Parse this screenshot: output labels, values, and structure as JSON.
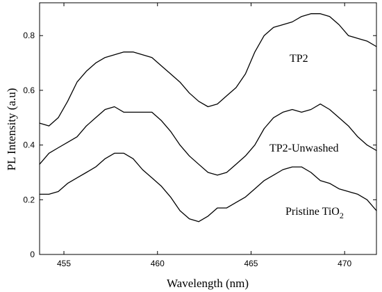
{
  "chart_data": {
    "type": "line",
    "title": "",
    "xlabel": "Wavelength (nm)",
    "ylabel": "PL Intensity (a.u)",
    "xlim": [
      453.7,
      471.7
    ],
    "ylim": [
      0,
      0.92
    ],
    "xticks": [
      455,
      460,
      465,
      470
    ],
    "yticks": [
      0,
      0.2,
      0.4,
      0.6,
      0.8
    ],
    "ytick_labels": [
      "0",
      "0.2",
      "0.4",
      "0.6",
      "0.8"
    ],
    "grid": false,
    "legend": "none (series labelled in-plot)",
    "line_color": "#000000",
    "series": [
      {
        "name": "TP2",
        "label_parts": [
          "TP2"
        ],
        "points": [
          [
            453.7,
            0.48
          ],
          [
            454.2,
            0.47
          ],
          [
            454.7,
            0.5
          ],
          [
            455.2,
            0.56
          ],
          [
            455.7,
            0.63
          ],
          [
            456.2,
            0.67
          ],
          [
            456.7,
            0.7
          ],
          [
            457.2,
            0.72
          ],
          [
            457.7,
            0.73
          ],
          [
            458.2,
            0.74
          ],
          [
            458.7,
            0.74
          ],
          [
            459.2,
            0.73
          ],
          [
            459.7,
            0.72
          ],
          [
            460.2,
            0.69
          ],
          [
            460.7,
            0.66
          ],
          [
            461.2,
            0.63
          ],
          [
            461.7,
            0.59
          ],
          [
            462.2,
            0.56
          ],
          [
            462.7,
            0.54
          ],
          [
            463.2,
            0.55
          ],
          [
            463.7,
            0.58
          ],
          [
            464.2,
            0.61
          ],
          [
            464.7,
            0.66
          ],
          [
            465.2,
            0.74
          ],
          [
            465.7,
            0.8
          ],
          [
            466.2,
            0.83
          ],
          [
            466.7,
            0.84
          ],
          [
            467.2,
            0.85
          ],
          [
            467.7,
            0.87
          ],
          [
            468.2,
            0.88
          ],
          [
            468.7,
            0.88
          ],
          [
            469.2,
            0.87
          ],
          [
            469.7,
            0.84
          ],
          [
            470.2,
            0.8
          ],
          [
            470.7,
            0.79
          ],
          [
            471.2,
            0.78
          ],
          [
            471.7,
            0.76
          ]
        ]
      },
      {
        "name": "TP2-Unwashed",
        "label_parts": [
          "TP2-Unwashed"
        ],
        "points": [
          [
            453.7,
            0.33
          ],
          [
            454.2,
            0.37
          ],
          [
            454.7,
            0.39
          ],
          [
            455.2,
            0.41
          ],
          [
            455.7,
            0.43
          ],
          [
            456.2,
            0.47
          ],
          [
            456.7,
            0.5
          ],
          [
            457.2,
            0.53
          ],
          [
            457.7,
            0.54
          ],
          [
            458.2,
            0.52
          ],
          [
            458.7,
            0.52
          ],
          [
            459.2,
            0.52
          ],
          [
            459.7,
            0.52
          ],
          [
            460.2,
            0.49
          ],
          [
            460.7,
            0.45
          ],
          [
            461.2,
            0.4
          ],
          [
            461.7,
            0.36
          ],
          [
            462.2,
            0.33
          ],
          [
            462.7,
            0.3
          ],
          [
            463.2,
            0.29
          ],
          [
            463.7,
            0.3
          ],
          [
            464.2,
            0.33
          ],
          [
            464.7,
            0.36
          ],
          [
            465.2,
            0.4
          ],
          [
            465.7,
            0.46
          ],
          [
            466.2,
            0.5
          ],
          [
            466.7,
            0.52
          ],
          [
            467.2,
            0.53
          ],
          [
            467.7,
            0.52
          ],
          [
            468.2,
            0.53
          ],
          [
            468.7,
            0.55
          ],
          [
            469.2,
            0.53
          ],
          [
            469.7,
            0.5
          ],
          [
            470.2,
            0.47
          ],
          [
            470.7,
            0.43
          ],
          [
            471.2,
            0.4
          ],
          [
            471.7,
            0.38
          ]
        ]
      },
      {
        "name": "Pristine TiO2",
        "label_parts": [
          "Pristine TiO",
          "2"
        ],
        "points": [
          [
            453.7,
            0.22
          ],
          [
            454.2,
            0.22
          ],
          [
            454.7,
            0.23
          ],
          [
            455.2,
            0.26
          ],
          [
            455.7,
            0.28
          ],
          [
            456.2,
            0.3
          ],
          [
            456.7,
            0.32
          ],
          [
            457.2,
            0.35
          ],
          [
            457.7,
            0.37
          ],
          [
            458.2,
            0.37
          ],
          [
            458.7,
            0.35
          ],
          [
            459.2,
            0.31
          ],
          [
            459.7,
            0.28
          ],
          [
            460.2,
            0.25
          ],
          [
            460.7,
            0.21
          ],
          [
            461.2,
            0.16
          ],
          [
            461.7,
            0.13
          ],
          [
            462.2,
            0.12
          ],
          [
            462.7,
            0.14
          ],
          [
            463.2,
            0.17
          ],
          [
            463.7,
            0.17
          ],
          [
            464.2,
            0.19
          ],
          [
            464.7,
            0.21
          ],
          [
            465.2,
            0.24
          ],
          [
            465.7,
            0.27
          ],
          [
            466.2,
            0.29
          ],
          [
            466.7,
            0.31
          ],
          [
            467.2,
            0.32
          ],
          [
            467.7,
            0.32
          ],
          [
            468.2,
            0.3
          ],
          [
            468.7,
            0.27
          ],
          [
            469.2,
            0.26
          ],
          [
            469.7,
            0.24
          ],
          [
            470.2,
            0.23
          ],
          [
            470.7,
            0.22
          ],
          [
            471.2,
            0.2
          ],
          [
            471.7,
            0.16
          ]
        ]
      }
    ]
  }
}
